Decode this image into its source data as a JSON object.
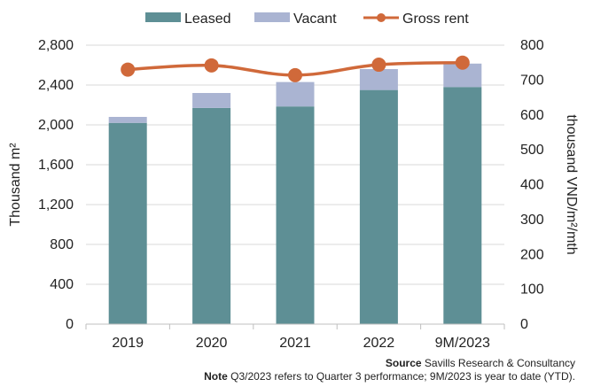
{
  "chart_data": {
    "type": "bar",
    "stacked": true,
    "categories": [
      "2019",
      "2020",
      "2021",
      "2022",
      "9M/2023"
    ],
    "series": [
      {
        "name": "Leased",
        "type": "bar",
        "axis": "left",
        "color": "#5e8f95",
        "values": [
          2020,
          2170,
          2185,
          2350,
          2380
        ]
      },
      {
        "name": "Vacant",
        "type": "bar",
        "axis": "left",
        "color": "#aab4d2",
        "values": [
          60,
          150,
          245,
          210,
          235
        ]
      },
      {
        "name": "Gross rent",
        "type": "line",
        "axis": "right",
        "color": "#d0693a",
        "values": [
          730,
          742,
          714,
          744,
          750
        ]
      }
    ],
    "ylabel": "Thousand m²",
    "y2label": "thousand VND/m²/mth",
    "ylim": [
      0,
      2800
    ],
    "y2lim": [
      0,
      800
    ],
    "yticks": [
      "0",
      "400",
      "800",
      "1,200",
      "1,600",
      "2,000",
      "2,400",
      "2,800"
    ],
    "y2ticks": [
      "0",
      "100",
      "200",
      "300",
      "400",
      "500",
      "600",
      "700",
      "800"
    ],
    "legend_position": "top",
    "grid": "horizontal"
  },
  "footer": {
    "source_label": "Source",
    "source_text": " Savills Research & Consultancy",
    "note_label": "Note",
    "note_text": " Q3/2023 refers to Quarter 3 performance; 9M/2023 is year to date (YTD)."
  }
}
